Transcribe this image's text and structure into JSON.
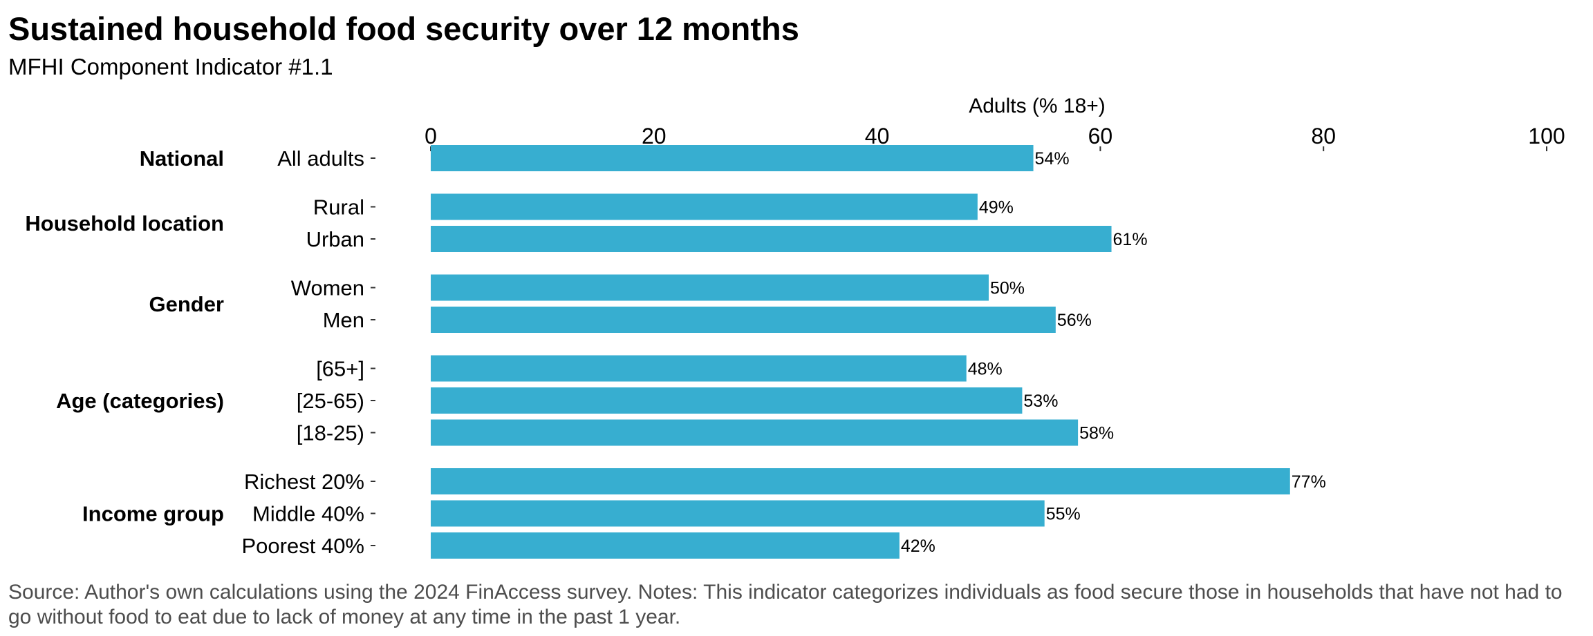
{
  "chart_data": {
    "type": "bar",
    "orientation": "horizontal",
    "title": "Sustained household food security over 12 months",
    "subtitle": "MFHI Component Indicator #1.1",
    "xlabel": "Adults (% 18+)",
    "xlim": [
      0,
      100
    ],
    "xticks": [
      0,
      20,
      40,
      60,
      80,
      100
    ],
    "bar_color": "#37AED0",
    "groups": [
      {
        "name": "National",
        "items": [
          {
            "label": "All adults",
            "value": 54,
            "value_label": "54%"
          }
        ]
      },
      {
        "name": "Household location",
        "items": [
          {
            "label": "Rural",
            "value": 49,
            "value_label": "49%"
          },
          {
            "label": "Urban",
            "value": 61,
            "value_label": "61%"
          }
        ]
      },
      {
        "name": "Gender",
        "items": [
          {
            "label": "Women",
            "value": 50,
            "value_label": "50%"
          },
          {
            "label": "Men",
            "value": 56,
            "value_label": "56%"
          }
        ]
      },
      {
        "name": "Age (categories)",
        "items": [
          {
            "label": "[65+]",
            "value": 48,
            "value_label": "48%"
          },
          {
            "label": "[25-65)",
            "value": 53,
            "value_label": "53%"
          },
          {
            "label": "[18-25)",
            "value": 58,
            "value_label": "58%"
          }
        ]
      },
      {
        "name": "Income group",
        "items": [
          {
            "label": "Richest 20%",
            "value": 77,
            "value_label": "77%"
          },
          {
            "label": "Middle 40%",
            "value": 55,
            "value_label": "55%"
          },
          {
            "label": "Poorest 40%",
            "value": 42,
            "value_label": "42%"
          }
        ]
      }
    ]
  },
  "source_note": "Source: Author's own calculations using the 2024 FinAccess survey. Notes: This indicator categorizes individuals as food secure those in households that have not had to go without food to eat due to lack of money at any time in the past 1 year."
}
